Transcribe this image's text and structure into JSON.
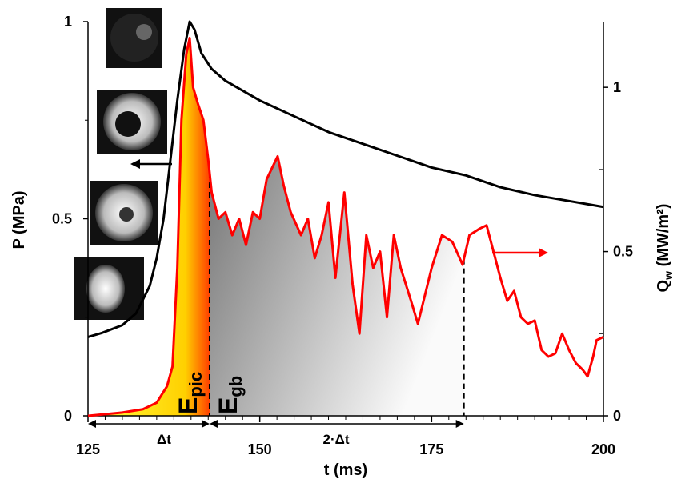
{
  "chart_data": {
    "type": "line",
    "x_label": "t (ms)",
    "y_label": "P (MPa)",
    "y2_label": {
      "main": "Q",
      "sub": "w",
      "unit": " (MW/m²)"
    },
    "xlim": [
      125,
      200
    ],
    "xticks": [
      125,
      150,
      175,
      200
    ],
    "ylim": [
      0,
      1
    ],
    "yticks": [
      0,
      0.5,
      1
    ],
    "y2lim": [
      0,
      1.2
    ],
    "y2ticks": [
      0,
      0.5,
      1
    ],
    "series": [
      {
        "color": "#000000",
        "x": [
          125,
          127,
          130,
          132,
          134,
          135,
          136,
          137,
          138,
          139,
          139.8,
          140.5,
          141.5,
          143,
          145,
          150,
          155,
          160,
          165,
          170,
          175,
          180,
          185,
          190,
          195,
          200
        ],
        "values": [
          0.2,
          0.21,
          0.23,
          0.26,
          0.33,
          0.4,
          0.5,
          0.65,
          0.8,
          0.93,
          1.0,
          0.98,
          0.92,
          0.88,
          0.85,
          0.8,
          0.76,
          0.72,
          0.69,
          0.66,
          0.63,
          0.61,
          0.58,
          0.56,
          0.545,
          0.53
        ]
      },
      {
        "color": "#ff0000",
        "axis": "y2",
        "x": [
          125,
          130,
          133,
          135,
          136.5,
          137.3,
          138,
          138.6,
          139.3,
          139.8,
          140.3,
          141,
          141.8,
          142.5,
          143,
          144,
          145,
          146,
          147,
          148,
          149,
          150,
          151,
          152.6,
          153.5,
          154.5,
          156,
          157,
          158,
          159,
          160,
          161,
          162.3,
          163.5,
          164.5,
          165.5,
          166.5,
          167.5,
          168.5,
          169.5,
          170.5,
          172,
          173,
          175,
          176.5,
          178,
          179.5,
          180.5,
          182,
          183,
          184,
          185,
          186,
          187,
          188,
          189,
          190,
          191,
          192,
          193,
          194,
          195,
          196,
          197,
          197.7,
          198.5,
          199,
          200
        ],
        "values": [
          0,
          0.01,
          0.02,
          0.04,
          0.09,
          0.15,
          0.45,
          0.9,
          1.1,
          1.15,
          1.0,
          0.95,
          0.9,
          0.78,
          0.68,
          0.6,
          0.62,
          0.55,
          0.6,
          0.52,
          0.62,
          0.6,
          0.72,
          0.79,
          0.7,
          0.62,
          0.55,
          0.6,
          0.48,
          0.55,
          0.65,
          0.42,
          0.68,
          0.4,
          0.25,
          0.55,
          0.45,
          0.5,
          0.3,
          0.55,
          0.45,
          0.35,
          0.28,
          0.45,
          0.55,
          0.53,
          0.46,
          0.55,
          0.57,
          0.58,
          0.5,
          0.42,
          0.35,
          0.38,
          0.3,
          0.28,
          0.29,
          0.2,
          0.18,
          0.19,
          0.25,
          0.2,
          0.16,
          0.14,
          0.12,
          0.18,
          0.23,
          0.24
        ]
      }
    ],
    "epic_range": [
      125,
      142.7
    ],
    "egb_range": [
      142.7,
      179.7
    ],
    "epic_label": {
      "main": "E",
      "sub": "pic"
    },
    "egb_label": {
      "main": "E",
      "sub": "gb"
    },
    "dt_label": "Δt",
    "dt2_label": "2·Δt"
  }
}
